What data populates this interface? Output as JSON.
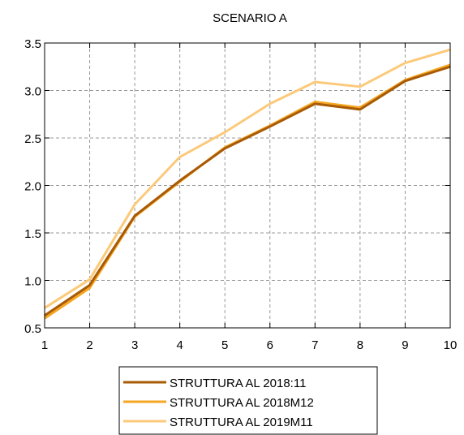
{
  "chart_data": {
    "type": "line",
    "title": "SCENARIO A",
    "xlabel": "",
    "ylabel": "",
    "x": [
      1,
      2,
      3,
      4,
      5,
      6,
      7,
      8,
      9,
      10
    ],
    "xlim": [
      1,
      10
    ],
    "ylim": [
      0.5,
      3.5
    ],
    "yticks": [
      "0.5",
      "1.0",
      "1.5",
      "2.0",
      "2.5",
      "3.0",
      "3.5"
    ],
    "xticks": [
      "1",
      "2",
      "3",
      "4",
      "5",
      "6",
      "7",
      "8",
      "9",
      "10"
    ],
    "grid": true,
    "legend_position": "bottom",
    "series": [
      {
        "name": "STRUTTURA AL 2018:11",
        "color": "#a85a05",
        "values": [
          0.63,
          0.95,
          1.68,
          2.05,
          2.39,
          2.62,
          2.86,
          2.8,
          3.1,
          3.25
        ]
      },
      {
        "name": "STRUTTURA AL 2018M12",
        "color": "#f5a623",
        "values": [
          0.6,
          0.92,
          1.67,
          2.04,
          2.4,
          2.63,
          2.88,
          2.82,
          3.11,
          3.27
        ]
      },
      {
        "name": "STRUTTURA AL 2019M11",
        "color": "#fcc97a",
        "values": [
          0.71,
          1.01,
          1.8,
          2.3,
          2.56,
          2.86,
          3.09,
          3.04,
          3.29,
          3.43
        ]
      }
    ]
  }
}
